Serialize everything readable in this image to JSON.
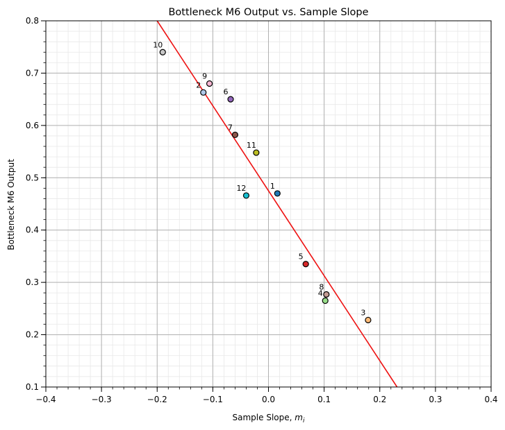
{
  "chart_data": {
    "type": "scatter",
    "title": "Bottleneck M6 Output vs. Sample Slope",
    "xlabel_main": "Sample Slope, ",
    "xlabel_math": "m",
    "xlabel_sub": "i",
    "ylabel": "Bottleneck M6 Output",
    "xlim": [
      -0.4,
      0.4
    ],
    "ylim": [
      0.1,
      0.8
    ],
    "grid": true,
    "x_ticks": [
      -0.4,
      -0.3,
      -0.2,
      -0.1,
      0.0,
      0.1,
      0.2,
      0.3,
      0.4
    ],
    "x_tick_labels": [
      "−0.4",
      "−0.3",
      "−0.2",
      "−0.1",
      "0.0",
      "0.1",
      "0.2",
      "0.3",
      "0.4"
    ],
    "y_ticks": [
      0.1,
      0.2,
      0.3,
      0.4,
      0.5,
      0.6,
      0.7,
      0.8
    ],
    "y_tick_labels": [
      "0.1",
      "0.2",
      "0.3",
      "0.4",
      "0.5",
      "0.6",
      "0.7",
      "0.8"
    ],
    "points": [
      {
        "label": "1",
        "x": 0.016,
        "y": 0.47,
        "color": "#1f77b4"
      },
      {
        "label": "2",
        "x": -0.117,
        "y": 0.663,
        "color": "#aec7e8"
      },
      {
        "label": "3",
        "x": 0.179,
        "y": 0.228,
        "color": "#ffbb78"
      },
      {
        "label": "4",
        "x": 0.102,
        "y": 0.265,
        "color": "#98df8a"
      },
      {
        "label": "5",
        "x": 0.067,
        "y": 0.335,
        "color": "#d62728"
      },
      {
        "label": "6",
        "x": -0.068,
        "y": 0.65,
        "color": "#9467bd"
      },
      {
        "label": "7",
        "x": -0.06,
        "y": 0.582,
        "color": "#8c564b"
      },
      {
        "label": "8",
        "x": 0.104,
        "y": 0.277,
        "color": "#c49c94"
      },
      {
        "label": "9",
        "x": -0.106,
        "y": 0.68,
        "color": "#f7b6d2"
      },
      {
        "label": "10",
        "x": -0.19,
        "y": 0.74,
        "color": "#c7c7c7"
      },
      {
        "label": "11",
        "x": -0.022,
        "y": 0.548,
        "color": "#bcbd22"
      },
      {
        "label": "12",
        "x": -0.04,
        "y": 0.466,
        "color": "#17becf"
      }
    ],
    "fit_line": {
      "x1": -0.2,
      "y1": 0.8,
      "x2": 0.231,
      "y2": 0.1,
      "color": "#ee1111"
    }
  }
}
